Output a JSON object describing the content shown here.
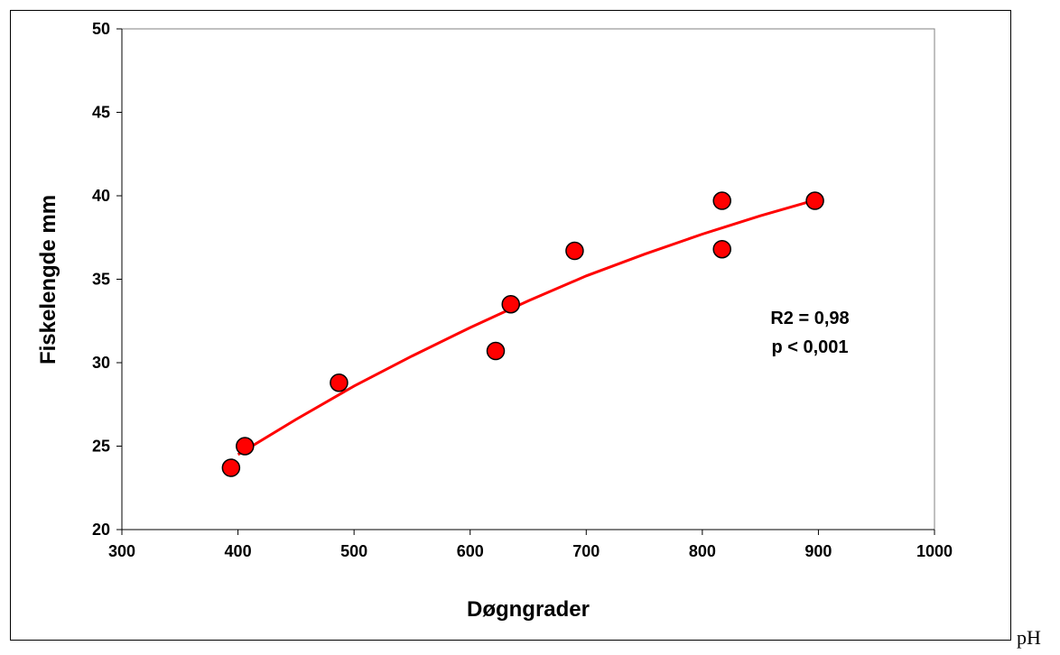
{
  "chart_data": {
    "type": "scatter",
    "title": "",
    "xlabel": "Døgngrader",
    "ylabel": "Fiskelengde mm",
    "xlim": [
      300,
      1000
    ],
    "ylim": [
      20,
      50
    ],
    "xticks": [
      300,
      400,
      500,
      600,
      700,
      800,
      900,
      1000
    ],
    "yticks": [
      20,
      25,
      30,
      35,
      40,
      45,
      50
    ],
    "grid": false,
    "series": [
      {
        "color": "#ff0000",
        "x": [
          394,
          406,
          487,
          622,
          635,
          690,
          817,
          817,
          897
        ],
        "y": [
          23.7,
          25.0,
          28.8,
          30.7,
          33.5,
          36.7,
          39.7,
          36.8,
          39.7
        ]
      }
    ],
    "trendline": {
      "color": "#ff0000",
      "x": [
        400,
        450,
        500,
        550,
        600,
        650,
        700,
        750,
        800,
        850,
        900
      ],
      "y": [
        24.5,
        26.6,
        28.6,
        30.4,
        32.1,
        33.7,
        35.2,
        36.5,
        37.7,
        38.8,
        39.8
      ]
    },
    "annotations": [
      "R2 = 0,98",
      "p < 0,001"
    ]
  },
  "trailing_text": "pH"
}
